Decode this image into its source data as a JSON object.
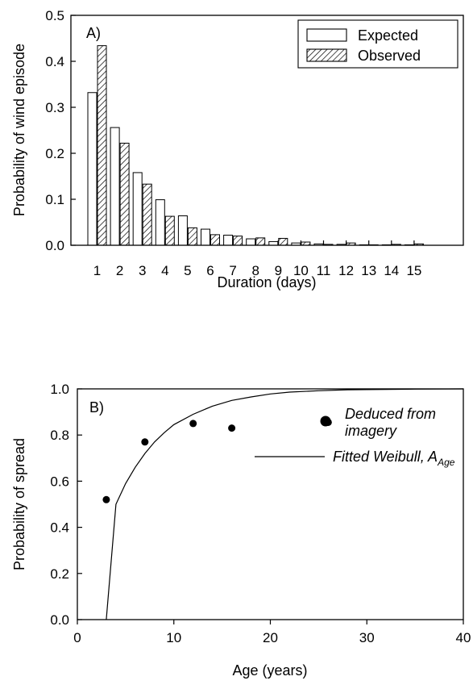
{
  "chart_data": [
    {
      "type": "bar",
      "panel_label": "A)",
      "xlabel": "Duration (days)",
      "ylabel": "Probability of wind episode",
      "ylim": [
        0,
        0.5
      ],
      "yticks": [
        "0.0",
        "0.1",
        "0.2",
        "0.3",
        "0.4",
        "0.5"
      ],
      "categories": [
        "1",
        "2",
        "3",
        "4",
        "5",
        "6",
        "7",
        "8",
        "9",
        "10",
        "11",
        "12",
        "13",
        "14",
        "15"
      ],
      "series": [
        {
          "name": "Expected",
          "fill": "#ffffff",
          "values": [
            0.332,
            0.256,
            0.158,
            0.099,
            0.064,
            0.035,
            0.022,
            0.014,
            0.008,
            0.005,
            0.003,
            0.002,
            0.001,
            0.001,
            0.001
          ]
        },
        {
          "name": "Observed",
          "fill": "hatched",
          "values": [
            0.434,
            0.222,
            0.133,
            0.063,
            0.038,
            0.023,
            0.02,
            0.016,
            0.015,
            0.007,
            0.002,
            0.005,
            0.001,
            0.002,
            0.003
          ]
        }
      ],
      "legend_position": "top-right",
      "grid": false
    },
    {
      "type": "scatter",
      "panel_label": "B)",
      "xlabel": "Age (years)",
      "ylabel": "Probability of spread",
      "xlim": [
        0,
        40
      ],
      "ylim": [
        0,
        1.0
      ],
      "xticks": [
        "0",
        "10",
        "20",
        "30",
        "40"
      ],
      "yticks": [
        "0.0",
        "0.2",
        "0.4",
        "0.6",
        "0.8",
        "1.0"
      ],
      "points": {
        "name": "Deduced from imagery",
        "name_line1": "Deduced from",
        "name_line2": "imagery",
        "x": [
          3,
          7,
          12,
          16,
          26
        ],
        "y": [
          0.52,
          0.77,
          0.85,
          0.83,
          0.855
        ]
      },
      "curve": {
        "name_prefix": "Fitted Weibull, A",
        "name_subscript": "Age",
        "x": [
          3,
          4,
          5,
          6,
          7,
          8,
          9,
          10,
          12,
          14,
          16,
          18,
          20,
          22,
          25,
          28,
          30,
          35,
          40
        ],
        "y": [
          0.0,
          0.5,
          0.59,
          0.66,
          0.72,
          0.77,
          0.81,
          0.845,
          0.89,
          0.925,
          0.95,
          0.965,
          0.978,
          0.986,
          0.992,
          0.996,
          0.997,
          0.999,
          1.0
        ]
      },
      "legend_position": "top-right",
      "grid": false
    }
  ]
}
